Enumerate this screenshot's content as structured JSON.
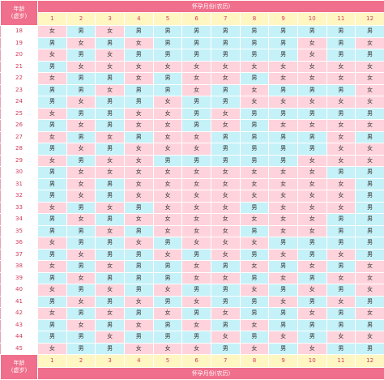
{
  "age_header": {
    "line1": "年龄",
    "line2": "(虚岁)"
  },
  "month_header": "怀孕月份(农历)",
  "months": [
    "1",
    "2",
    "3",
    "4",
    "5",
    "6",
    "7",
    "8",
    "9",
    "10",
    "11",
    "12"
  ],
  "rows": [
    {
      "age": "18",
      "cells": [
        "女",
        "男",
        "女",
        "男",
        "男",
        "男",
        "男",
        "男",
        "男",
        "男",
        "男",
        "男"
      ]
    },
    {
      "age": "19",
      "cells": [
        "男",
        "女",
        "男",
        "女",
        "男",
        "男",
        "男",
        "男",
        "男",
        "女",
        "男",
        "女"
      ]
    },
    {
      "age": "20",
      "cells": [
        "女",
        "男",
        "女",
        "男",
        "男",
        "男",
        "男",
        "男",
        "男",
        "女",
        "男",
        "男"
      ]
    },
    {
      "age": "21",
      "cells": [
        "男",
        "女",
        "女",
        "女",
        "女",
        "女",
        "女",
        "女",
        "女",
        "女",
        "女",
        "女"
      ]
    },
    {
      "age": "22",
      "cells": [
        "女",
        "男",
        "男",
        "女",
        "男",
        "女",
        "女",
        "男",
        "女",
        "女",
        "女",
        "女"
      ]
    },
    {
      "age": "23",
      "cells": [
        "男",
        "男",
        "女",
        "男",
        "男",
        "女",
        "男",
        "女",
        "男",
        "男",
        "男",
        "女"
      ]
    },
    {
      "age": "24",
      "cells": [
        "男",
        "女",
        "男",
        "男",
        "女",
        "男",
        "男",
        "女",
        "女",
        "女",
        "女",
        "女"
      ]
    },
    {
      "age": "25",
      "cells": [
        "女",
        "男",
        "男",
        "女",
        "女",
        "男",
        "女",
        "男",
        "男",
        "男",
        "男",
        "男"
      ]
    },
    {
      "age": "26",
      "cells": [
        "男",
        "女",
        "男",
        "女",
        "女",
        "男",
        "女",
        "男",
        "女",
        "女",
        "女",
        "女"
      ]
    },
    {
      "age": "27",
      "cells": [
        "女",
        "男",
        "女",
        "男",
        "女",
        "女",
        "男",
        "男",
        "男",
        "男",
        "女",
        "男"
      ]
    },
    {
      "age": "28",
      "cells": [
        "男",
        "女",
        "男",
        "女",
        "女",
        "女",
        "男",
        "男",
        "男",
        "男",
        "女",
        "女"
      ]
    },
    {
      "age": "29",
      "cells": [
        "女",
        "男",
        "女",
        "女",
        "男",
        "男",
        "男",
        "男",
        "男",
        "女",
        "女",
        "女"
      ]
    },
    {
      "age": "30",
      "cells": [
        "男",
        "女",
        "女",
        "女",
        "女",
        "女",
        "女",
        "女",
        "女",
        "女",
        "男",
        "男"
      ]
    },
    {
      "age": "31",
      "cells": [
        "男",
        "女",
        "男",
        "女",
        "女",
        "女",
        "女",
        "女",
        "女",
        "女",
        "女",
        "男"
      ]
    },
    {
      "age": "32",
      "cells": [
        "男",
        "女",
        "男",
        "女",
        "女",
        "女",
        "女",
        "女",
        "女",
        "女",
        "女",
        "男"
      ]
    },
    {
      "age": "33",
      "cells": [
        "女",
        "男",
        "女",
        "男",
        "女",
        "女",
        "女",
        "男",
        "女",
        "女",
        "女",
        "男"
      ]
    },
    {
      "age": "34",
      "cells": [
        "男",
        "女",
        "男",
        "女",
        "女",
        "女",
        "女",
        "女",
        "女",
        "女",
        "男",
        "男"
      ]
    },
    {
      "age": "35",
      "cells": [
        "男",
        "男",
        "女",
        "男",
        "女",
        "女",
        "女",
        "男",
        "女",
        "女",
        "男",
        "男"
      ]
    },
    {
      "age": "36",
      "cells": [
        "女",
        "男",
        "男",
        "女",
        "男",
        "女",
        "女",
        "女",
        "男",
        "男",
        "男",
        "男"
      ]
    },
    {
      "age": "37",
      "cells": [
        "男",
        "女",
        "男",
        "男",
        "女",
        "男",
        "女",
        "男",
        "女",
        "男",
        "女",
        "男"
      ]
    },
    {
      "age": "38",
      "cells": [
        "女",
        "男",
        "女",
        "男",
        "男",
        "女",
        "男",
        "女",
        "男",
        "女",
        "男",
        "女"
      ]
    },
    {
      "age": "39",
      "cells": [
        "男",
        "女",
        "男",
        "男",
        "男",
        "女",
        "女",
        "男",
        "女",
        "男",
        "女",
        "女"
      ]
    },
    {
      "age": "40",
      "cells": [
        "女",
        "男",
        "女",
        "男",
        "女",
        "男",
        "男",
        "女",
        "男",
        "女",
        "男",
        "女"
      ]
    },
    {
      "age": "41",
      "cells": [
        "男",
        "女",
        "男",
        "女",
        "男",
        "女",
        "男",
        "男",
        "女",
        "男",
        "女",
        "男"
      ]
    },
    {
      "age": "42",
      "cells": [
        "女",
        "男",
        "女",
        "男",
        "女",
        "男",
        "女",
        "男",
        "男",
        "女",
        "男",
        "女"
      ]
    },
    {
      "age": "43",
      "cells": [
        "男",
        "女",
        "男",
        "女",
        "男",
        "女",
        "男",
        "女",
        "男",
        "男",
        "男",
        "男"
      ]
    },
    {
      "age": "44",
      "cells": [
        "男",
        "男",
        "女",
        "男",
        "男",
        "男",
        "女",
        "男",
        "女",
        "男",
        "女",
        "女"
      ]
    },
    {
      "age": "45",
      "cells": [
        "女",
        "男",
        "男",
        "女",
        "女",
        "女",
        "男",
        "女",
        "男",
        "女",
        "男",
        "男"
      ]
    }
  ],
  "colors": {
    "header": "#f06f8c",
    "month_row": "#fff6c2",
    "girl": "#ffd3dc",
    "boy": "#c5f1f8",
    "age_text": "#d23a5c"
  }
}
